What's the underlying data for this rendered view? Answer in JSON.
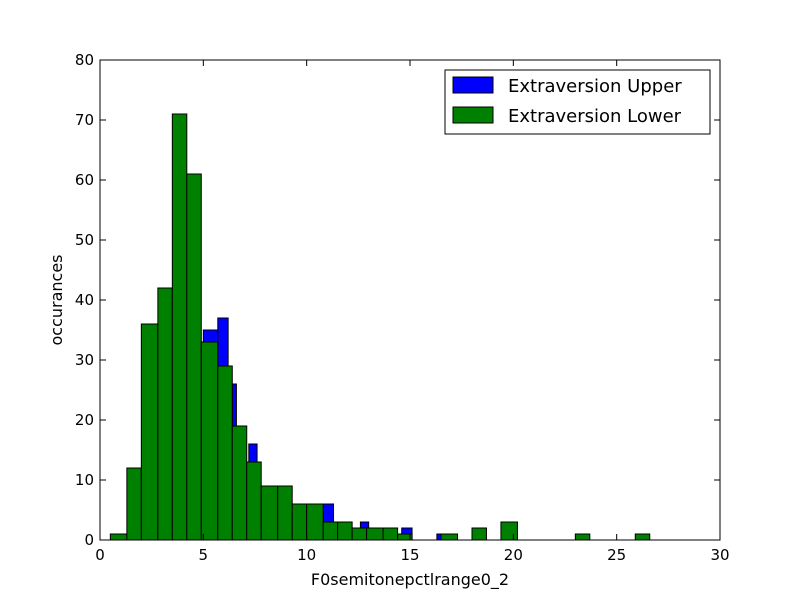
{
  "chart_data": {
    "type": "bar",
    "subtype": "overlaid-histogram",
    "xlabel": "F0semitonepctlrange0_2",
    "ylabel": "occurances",
    "xlim": [
      0,
      30
    ],
    "ylim": [
      0,
      80
    ],
    "xticks": [
      0,
      5,
      10,
      15,
      20,
      25,
      30
    ],
    "yticks": [
      0,
      10,
      20,
      30,
      40,
      50,
      60,
      70,
      80
    ],
    "grid": false,
    "legend_position": "top-right",
    "series": [
      {
        "name": "Extraversion Upper",
        "color": "#0000ff",
        "bins": [
          {
            "x0": 5.0,
            "x1": 5.7,
            "value": 35
          },
          {
            "x0": 5.7,
            "x1": 6.2,
            "value": 37
          },
          {
            "x0": 6.4,
            "x1": 6.6,
            "value": 26
          },
          {
            "x0": 7.2,
            "x1": 7.6,
            "value": 16
          },
          {
            "x0": 10.8,
            "x1": 11.3,
            "value": 6
          },
          {
            "x0": 12.6,
            "x1": 13.0,
            "value": 3
          },
          {
            "x0": 14.6,
            "x1": 15.1,
            "value": 2
          },
          {
            "x0": 16.3,
            "x1": 16.8,
            "value": 1
          }
        ]
      },
      {
        "name": "Extraversion Lower",
        "color": "#008000",
        "bins": [
          {
            "x0": 0.5,
            "x1": 1.3,
            "value": 1
          },
          {
            "x0": 1.3,
            "x1": 2.0,
            "value": 12
          },
          {
            "x0": 2.0,
            "x1": 2.8,
            "value": 36
          },
          {
            "x0": 2.8,
            "x1": 3.5,
            "value": 42
          },
          {
            "x0": 3.5,
            "x1": 4.2,
            "value": 71
          },
          {
            "x0": 4.2,
            "x1": 4.9,
            "value": 61
          },
          {
            "x0": 4.9,
            "x1": 5.7,
            "value": 33
          },
          {
            "x0": 5.7,
            "x1": 6.4,
            "value": 29
          },
          {
            "x0": 6.4,
            "x1": 7.1,
            "value": 19
          },
          {
            "x0": 7.1,
            "x1": 7.8,
            "value": 13
          },
          {
            "x0": 7.8,
            "x1": 8.6,
            "value": 9
          },
          {
            "x0": 8.6,
            "x1": 9.3,
            "value": 9
          },
          {
            "x0": 9.3,
            "x1": 10.0,
            "value": 6
          },
          {
            "x0": 10.0,
            "x1": 10.8,
            "value": 6
          },
          {
            "x0": 10.8,
            "x1": 11.5,
            "value": 3
          },
          {
            "x0": 11.5,
            "x1": 12.2,
            "value": 3
          },
          {
            "x0": 12.2,
            "x1": 12.9,
            "value": 2
          },
          {
            "x0": 12.9,
            "x1": 13.7,
            "value": 2
          },
          {
            "x0": 13.7,
            "x1": 14.4,
            "value": 2
          },
          {
            "x0": 14.4,
            "x1": 15.1,
            "value": 1
          },
          {
            "x0": 16.5,
            "x1": 17.3,
            "value": 1
          },
          {
            "x0": 18.0,
            "x1": 18.7,
            "value": 2
          },
          {
            "x0": 19.4,
            "x1": 20.2,
            "value": 3
          },
          {
            "x0": 23.0,
            "x1": 23.7,
            "value": 1
          },
          {
            "x0": 25.9,
            "x1": 26.6,
            "value": 1
          }
        ]
      }
    ]
  }
}
